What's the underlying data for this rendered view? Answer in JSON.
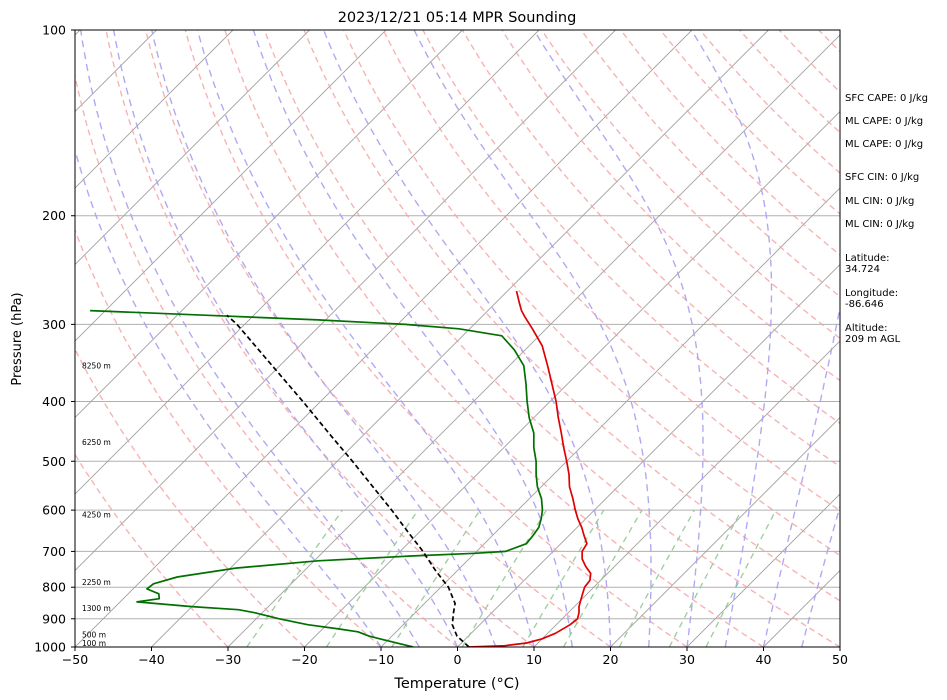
{
  "chart_data": {
    "type": "line",
    "title": "2023/12/21 05:14 MPR Sounding",
    "xlabel": "Temperature (°C)",
    "ylabel": "Pressure (hPa)",
    "xlim": [
      -50,
      50
    ],
    "ylim": [
      1000,
      100
    ],
    "y_scale": "log",
    "skew": "45°",
    "x_ticks": [
      -50,
      -40,
      -30,
      -20,
      -10,
      0,
      10,
      20,
      30,
      40,
      50
    ],
    "y_ticks": [
      1000,
      900,
      800,
      700,
      600,
      500,
      400,
      300,
      200,
      100
    ],
    "grid": true,
    "height_labels": [
      {
        "p": 985,
        "text": "100 m"
      },
      {
        "p": 955,
        "text": "500 m"
      },
      {
        "p": 865,
        "text": "1300 m"
      },
      {
        "p": 785,
        "text": "2250 m"
      },
      {
        "p": 610,
        "text": "4250 m"
      },
      {
        "p": 465,
        "text": "6250 m"
      },
      {
        "p": 350,
        "text": "8250 m"
      }
    ],
    "series": [
      {
        "color": "#e00000",
        "points": [
          [
            1000,
            1.5
          ],
          [
            995,
            6.0
          ],
          [
            985,
            8.5
          ],
          [
            970,
            10.0
          ],
          [
            950,
            11.0
          ],
          [
            920,
            11.8
          ],
          [
            900,
            12.0
          ],
          [
            880,
            11.4
          ],
          [
            860,
            10.6
          ],
          [
            840,
            10.0
          ],
          [
            820,
            9.4
          ],
          [
            800,
            8.8
          ],
          [
            780,
            8.6
          ],
          [
            760,
            7.8
          ],
          [
            740,
            6.2
          ],
          [
            720,
            4.8
          ],
          [
            700,
            3.8
          ],
          [
            680,
            3.4
          ],
          [
            660,
            2.0
          ],
          [
            640,
            0.6
          ],
          [
            620,
            -1.0
          ],
          [
            600,
            -2.5
          ],
          [
            575,
            -4.3
          ],
          [
            550,
            -6.3
          ],
          [
            525,
            -8.0
          ],
          [
            500,
            -10.0
          ],
          [
            475,
            -12.2
          ],
          [
            450,
            -14.4
          ],
          [
            425,
            -16.8
          ],
          [
            400,
            -19.2
          ],
          [
            375,
            -22.0
          ],
          [
            350,
            -25.0
          ],
          [
            325,
            -28.3
          ],
          [
            305,
            -31.8
          ],
          [
            292,
            -34.3
          ],
          [
            285,
            -35.6
          ],
          [
            275,
            -37.2
          ],
          [
            265,
            -38.8
          ]
        ]
      },
      {
        "color": "#007000",
        "points": [
          [
            1000,
            -5.8
          ],
          [
            980,
            -9.4
          ],
          [
            960,
            -13.0
          ],
          [
            945,
            -15.0
          ],
          [
            935,
            -17.8
          ],
          [
            920,
            -22.5
          ],
          [
            900,
            -27.0
          ],
          [
            880,
            -31.0
          ],
          [
            870,
            -33.5
          ],
          [
            860,
            -40.0
          ],
          [
            845,
            -47.8
          ],
          [
            835,
            -45.3
          ],
          [
            820,
            -46.0
          ],
          [
            805,
            -48.2
          ],
          [
            790,
            -48.0
          ],
          [
            770,
            -45.8
          ],
          [
            745,
            -39.3
          ],
          [
            725,
            -29.5
          ],
          [
            712,
            -18.0
          ],
          [
            705,
            -10.0
          ],
          [
            700,
            -6.2
          ],
          [
            680,
            -4.5
          ],
          [
            660,
            -4.7
          ],
          [
            640,
            -5.0
          ],
          [
            620,
            -5.8
          ],
          [
            600,
            -6.8
          ],
          [
            575,
            -8.4
          ],
          [
            550,
            -10.5
          ],
          [
            525,
            -12.3
          ],
          [
            500,
            -14.0
          ],
          [
            475,
            -16.1
          ],
          [
            450,
            -18.0
          ],
          [
            425,
            -20.6
          ],
          [
            400,
            -23.0
          ],
          [
            375,
            -25.4
          ],
          [
            350,
            -28.1
          ],
          [
            330,
            -31.4
          ],
          [
            313,
            -34.9
          ],
          [
            305,
            -41.4
          ],
          [
            300,
            -49.0
          ],
          [
            295,
            -61.0
          ],
          [
            290,
            -76.0
          ],
          [
            285,
            -92.0
          ]
        ]
      },
      {
        "color": "#000000",
        "style": "dashed",
        "points": [
          [
            1000,
            1.5
          ],
          [
            960,
            -1.5
          ],
          [
            920,
            -3.6
          ],
          [
            880,
            -5.0
          ],
          [
            850,
            -6.0
          ],
          [
            800,
            -9.0
          ],
          [
            750,
            -13.0
          ],
          [
            700,
            -17.0
          ],
          [
            650,
            -21.6
          ],
          [
            600,
            -26.5
          ],
          [
            550,
            -32.0
          ],
          [
            500,
            -38.0
          ],
          [
            450,
            -44.8
          ],
          [
            400,
            -52.3
          ],
          [
            350,
            -61.0
          ],
          [
            300,
            -71.0
          ],
          [
            290,
            -73.5
          ]
        ]
      }
    ],
    "reference_lines": {
      "dry_adiabats_color": "#f5a0a0",
      "moist_adiabats_color": "#a8a0f0",
      "mixing_ratio_color": "#90c890",
      "isotherm_color": "#a0a0a0"
    }
  },
  "info_panel": {
    "sfc_cape": "SFC CAPE: 0 J/kg",
    "ml_cape_1": "ML CAPE: 0 J/kg",
    "ml_cape_2": "ML CAPE: 0 J/kg",
    "sfc_cin": "SFC CIN: 0 J/kg",
    "ml_cin_1": "ML CIN: 0 J/kg",
    "ml_cin_2": "ML CIN: 0 J/kg",
    "latitude_label": "Latitude:",
    "latitude_value": "34.724",
    "longitude_label": "Longitude:",
    "longitude_value": "-86.646",
    "altitude_label": "Altitude:",
    "altitude_value": "209 m AGL"
  }
}
